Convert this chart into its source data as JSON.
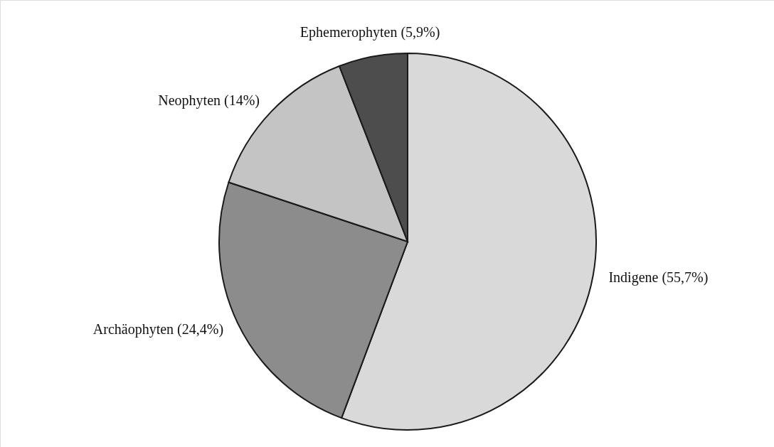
{
  "chart_data": {
    "type": "pie",
    "categories": [
      "Indigene (55,7%)",
      "Archäophyten (24,4%)",
      "Neophyten (14%)",
      "Ephemerophyten (5,9%)"
    ],
    "values": [
      55.7,
      24.4,
      14,
      5.9
    ],
    "colors": [
      "#d9d9d9",
      "#8c8c8c",
      "#c4c4c4",
      "#4d4d4d"
    ]
  }
}
